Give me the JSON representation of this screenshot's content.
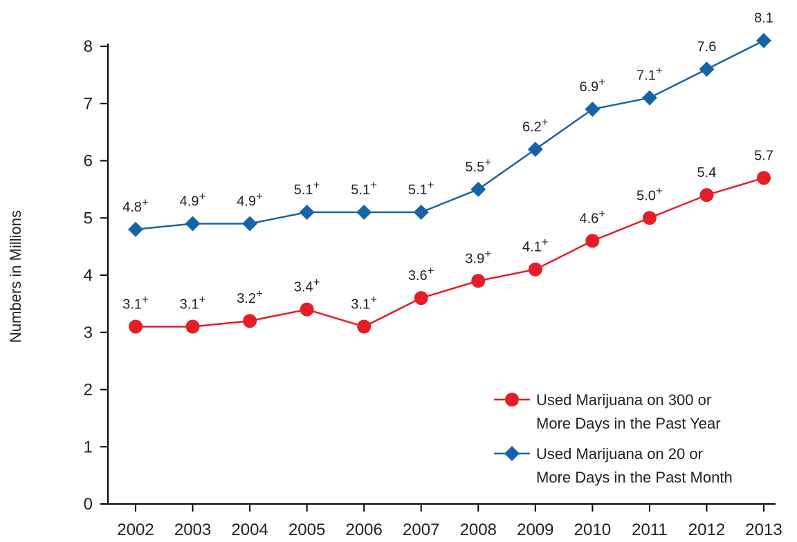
{
  "chart_data": {
    "type": "line",
    "title": "",
    "xlabel": "",
    "ylabel": "Numbers in Millions",
    "ylim": [
      0,
      8
    ],
    "yticks": [
      "0",
      "1",
      "2",
      "3",
      "4",
      "5",
      "6",
      "7",
      "8"
    ],
    "x": [
      "2002",
      "2003",
      "2004",
      "2005",
      "2006",
      "2007",
      "2008",
      "2009",
      "2010",
      "2011",
      "2012",
      "2013"
    ],
    "grid": false,
    "legend_position": "bottom-right",
    "series": [
      {
        "name": "Used Marijuana on 20 or More Days in the Past Month",
        "legend_lines": [
          "Used Marijuana on 20 or",
          "More Days in the Past Month"
        ],
        "marker": "diamond",
        "color": "#1763a6",
        "values": [
          4.8,
          4.9,
          4.9,
          5.1,
          5.1,
          5.1,
          5.5,
          6.2,
          6.9,
          7.1,
          7.6,
          8.1
        ],
        "labels": [
          "4.8",
          "4.9",
          "4.9",
          "5.1",
          "5.1",
          "5.1",
          "5.5",
          "6.2",
          "6.9",
          "7.1",
          "7.6",
          "8.1"
        ],
        "significance": [
          "+",
          "+",
          "+",
          "+",
          "+",
          "+",
          "+",
          "+",
          "+",
          "+",
          "",
          ""
        ]
      },
      {
        "name": "Used Marijuana on 300 or More Days in the Past Year",
        "legend_lines": [
          "Used Marijuana on 300 or",
          "More Days in the Past Year"
        ],
        "marker": "circle",
        "color": "#e31e26",
        "values": [
          3.1,
          3.1,
          3.2,
          3.4,
          3.1,
          3.6,
          3.9,
          4.1,
          4.6,
          5.0,
          5.4,
          5.7
        ],
        "labels": [
          "3.1",
          "3.1",
          "3.2",
          "3.4",
          "3.1",
          "3.6",
          "3.9",
          "4.1",
          "4.6",
          "5.0",
          "5.4",
          "5.7"
        ],
        "significance": [
          "+",
          "+",
          "+",
          "+",
          "+",
          "+",
          "+",
          "+",
          "+",
          "+",
          "",
          ""
        ]
      }
    ]
  }
}
